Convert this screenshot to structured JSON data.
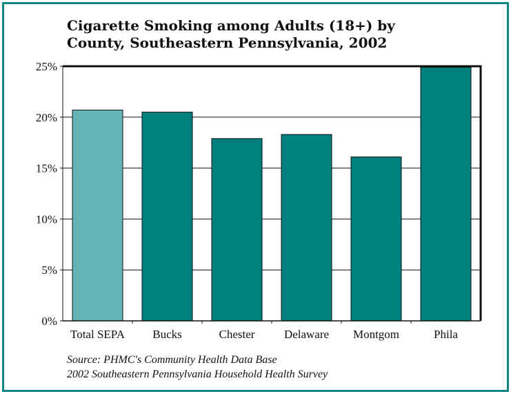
{
  "title_lines": [
    "Cigarette Smoking among Adults (18+) by",
    "County,  Southeastern Pennsylvania,  2002"
  ],
  "source_lines": [
    "Source: PHMC's Community Health Data Base",
    "2002 Southeastern Pennsylvania Household Health Survey"
  ],
  "colors": {
    "frame": "#0f8582",
    "bar_main": "#007f7f",
    "bar_highlight": "#66b3b6"
  },
  "chart_data": {
    "type": "bar",
    "title": "Cigarette Smoking among Adults (18+) by County,  Southeastern Pennsylvania,  2002",
    "categories": [
      "Total SEPA",
      "Bucks",
      "Chester",
      "Delaware",
      "Montgom",
      "Phila"
    ],
    "values": [
      20.7,
      20.5,
      17.9,
      18.3,
      16.1,
      24.9
    ],
    "highlight_index": 0,
    "ylim": [
      0,
      25
    ],
    "yticks": [
      0,
      5,
      10,
      15,
      20,
      25
    ],
    "ytick_labels": [
      "0%",
      "5%",
      "10%",
      "15%",
      "20%",
      "25%"
    ],
    "grid": "horizontal",
    "xlabel": "",
    "ylabel": ""
  }
}
